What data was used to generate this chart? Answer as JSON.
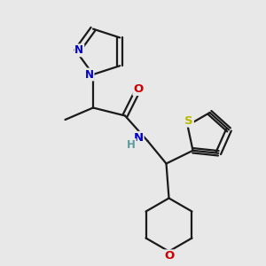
{
  "bg_color": "#e8e8e8",
  "bond_color": "#1a1a1a",
  "bond_width": 1.6,
  "atom_colors": {
    "N": "#0000cc",
    "O": "#cc0000",
    "S": "#b8b800",
    "C": "#1a1a1a",
    "H": "#5a9a9a"
  },
  "font_size": 8.5,
  "fig_size": [
    3.0,
    3.0
  ],
  "dpi": 100
}
